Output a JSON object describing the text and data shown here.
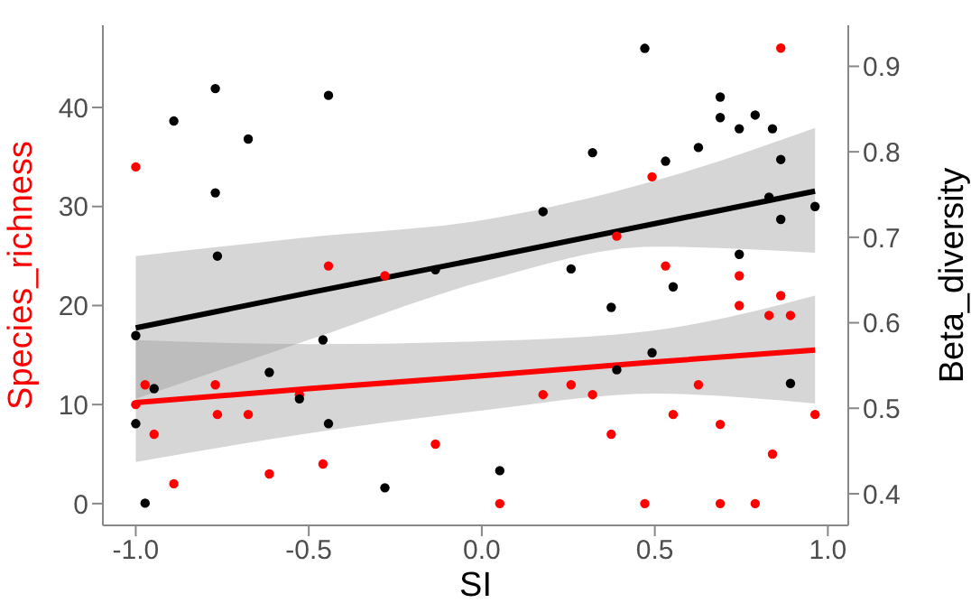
{
  "chart_data": {
    "type": "scatter",
    "xlabel": "SI",
    "ylabel": "Species_richness",
    "y2label": "Beta_diversity",
    "xlim": [
      -1.095,
      1.059
    ],
    "xticks": [
      {
        "value": -1,
        "label": "-1.0"
      },
      {
        "value": -0.5,
        "label": "-0.5"
      },
      {
        "value": 0,
        "label": "0.0"
      },
      {
        "value": 0.5,
        "label": "0.5"
      },
      {
        "value": 1,
        "label": "1.0"
      }
    ],
    "ylim": [
      -2.2,
      48.3
    ],
    "yticks": [
      0,
      10,
      20,
      30,
      40
    ],
    "y2lim": [
      0.363,
      0.948
    ],
    "y2ticks": [
      0.4,
      0.5,
      0.6,
      0.7,
      0.8,
      0.9
    ],
    "grid": false,
    "marker": "circle",
    "series": [
      {
        "axis": "y",
        "color": "#ff0000",
        "x": [
          -1.0,
          -1.0,
          -0.973,
          -0.947,
          -0.89,
          -0.77,
          -0.764,
          -0.675,
          -0.614,
          -0.527,
          -0.459,
          -0.443,
          -0.28,
          -0.134,
          0.052,
          0.177,
          0.258,
          0.32,
          0.374,
          0.39,
          0.471,
          0.492,
          0.531,
          0.553,
          0.626,
          0.689,
          0.689,
          0.744,
          0.744,
          0.79,
          0.83,
          0.84,
          0.864,
          0.864,
          0.892,
          0.963
        ],
        "values": [
          34,
          10,
          12,
          7,
          2,
          12,
          9,
          9,
          3,
          11,
          4,
          24,
          23,
          6,
          0,
          11,
          12,
          11,
          7,
          27,
          0,
          33,
          24,
          9,
          12,
          8,
          0,
          23,
          20,
          0,
          19,
          5,
          46,
          21,
          19,
          9
        ]
      },
      {
        "axis": "y2",
        "color": "#000000",
        "x": [
          -1.0,
          -1.0,
          -0.973,
          -0.947,
          -0.89,
          -0.77,
          -0.77,
          -0.764,
          -0.675,
          -0.614,
          -0.527,
          -0.459,
          -0.443,
          -0.443,
          -0.28,
          -0.134,
          0.052,
          0.177,
          0.258,
          0.32,
          0.374,
          0.39,
          0.471,
          0.492,
          0.531,
          0.553,
          0.626,
          0.689,
          0.689,
          0.744,
          0.744,
          0.79,
          0.83,
          0.84,
          0.864,
          0.864,
          0.892,
          0.963
        ],
        "values": [
          0.585,
          0.482,
          0.389,
          0.523,
          0.836,
          0.874,
          0.752,
          0.678,
          0.815,
          0.542,
          0.511,
          0.58,
          0.866,
          0.482,
          0.407,
          0.662,
          0.427,
          0.73,
          0.663,
          0.799,
          0.618,
          0.545,
          0.921,
          0.565,
          0.789,
          0.642,
          0.805,
          0.864,
          0.84,
          0.827,
          0.68,
          0.843,
          0.747,
          0.827,
          0.791,
          0.721,
          0.529,
          0.736
        ]
      },
      {
        "type": "line",
        "axis": "y",
        "color": "#ff0000",
        "marker": "none",
        "x": [
          -1,
          -0.5,
          0,
          0.5,
          0.963
        ],
        "values": [
          10.2,
          11.6,
          12.9,
          14.3,
          15.5
        ],
        "lower": [
          4.2,
          7.1,
          9.4,
          11.1,
          10.1
        ],
        "upper": [
          16.5,
          16.1,
          16.4,
          17.5,
          21.0
        ]
      },
      {
        "type": "line",
        "axis": "y2",
        "color": "#000000",
        "marker": "none",
        "x": [
          -1,
          -0.5,
          0,
          0.5,
          0.963
        ],
        "values": [
          0.594,
          0.635,
          0.675,
          0.716,
          0.754
        ],
        "lower": [
          0.511,
          0.58,
          0.648,
          0.689,
          0.682
        ],
        "upper": [
          0.678,
          0.7,
          0.72,
          0.766,
          0.828
        ]
      }
    ]
  }
}
